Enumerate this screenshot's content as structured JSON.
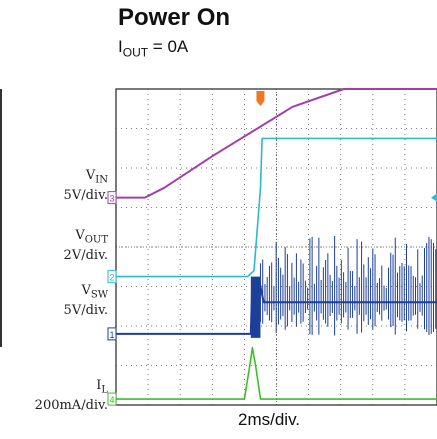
{
  "title": "Power On",
  "subtitle": {
    "base": "I",
    "sub": "OUT",
    "rest": " = 0A"
  },
  "xdiv_label": "2ms/div.",
  "colors": {
    "vin": "#a040a8",
    "vout": "#30b8cc",
    "vsw": "#1c3f9a",
    "il": "#3cc028",
    "grid": "#555555",
    "trigger": "#f07820"
  },
  "channels": [
    {
      "id": "vin",
      "name": "V",
      "sub": "IN",
      "scale": "5V/div.",
      "marker": "3"
    },
    {
      "id": "vout",
      "name": "V",
      "sub": "OUT",
      "scale": "2V/div.",
      "marker": "2"
    },
    {
      "id": "vsw",
      "name": "V",
      "sub": "SW",
      "scale": "5V/div.",
      "marker": "1"
    },
    {
      "id": "il",
      "name": "I",
      "sub": "L",
      "scale": "200mA/div.",
      "marker": "4"
    }
  ],
  "chart_data": {
    "type": "line",
    "title": "Power On",
    "subtitle": "IOUT = 0A",
    "x_units": "div",
    "x_range": [
      0,
      10
    ],
    "y_units": "div",
    "y_range": [
      0,
      8
    ],
    "time_per_div": "2ms/div.",
    "series": [
      {
        "name": "VIN",
        "scale": "5V/div.",
        "points": [
          [
            0,
            5.25
          ],
          [
            0.9,
            5.25
          ],
          [
            1.5,
            5.5
          ],
          [
            3,
            6.3
          ],
          [
            5.5,
            7.55
          ],
          [
            7.1,
            8.0
          ],
          [
            10,
            8.0
          ]
        ]
      },
      {
        "name": "VOUT",
        "scale": "2V/div.",
        "points": [
          [
            0,
            3.25
          ],
          [
            4.1,
            3.25
          ],
          [
            4.3,
            3.4
          ],
          [
            4.5,
            5.5
          ],
          [
            4.55,
            6.75
          ],
          [
            10,
            6.75
          ]
        ]
      },
      {
        "name": "VSW",
        "scale": "5V/div.",
        "points": [
          [
            0,
            1.8
          ],
          [
            4.2,
            1.8
          ],
          [
            4.25,
            3.2
          ],
          [
            4.4,
            1.8
          ],
          [
            4.45,
            3.2
          ],
          [
            4.6,
            2.6
          ],
          [
            10,
            2.6
          ]
        ]
      },
      {
        "name": "IL",
        "scale": "200mA/div.",
        "points": [
          [
            0,
            0.15
          ],
          [
            4.0,
            0.15
          ],
          [
            4.15,
            0.9
          ],
          [
            4.25,
            1.45
          ],
          [
            4.35,
            1.0
          ],
          [
            4.5,
            0.15
          ],
          [
            10,
            0.15
          ]
        ]
      }
    ]
  }
}
